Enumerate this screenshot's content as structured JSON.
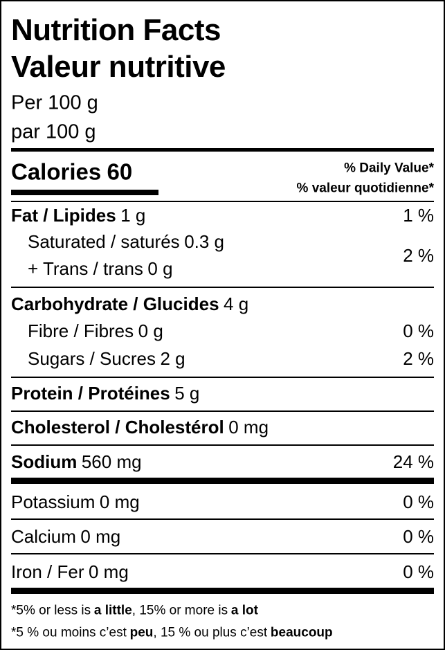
{
  "header": {
    "title_en": "Nutrition Facts",
    "title_fr": "Valeur nutritive",
    "serving_en": "Per 100 g",
    "serving_fr": "par 100 g"
  },
  "calories": {
    "label": "Calories",
    "amount": "60"
  },
  "daily_value_header": {
    "en": "% Daily Value*",
    "fr": "% valeur quotidienne*"
  },
  "fat": {
    "name": "Fat / Lipides",
    "amount": "1 g",
    "dv": "1 %"
  },
  "saturated_trans": {
    "saturated_name": "Saturated / saturés",
    "saturated_amount": "0.3 g",
    "trans_name": "+ Trans / trans",
    "trans_amount": "0 g",
    "dv": "2 %"
  },
  "carbohydrate": {
    "name": "Carbohydrate / Glucides",
    "amount": "4 g"
  },
  "fibre": {
    "name": "Fibre / Fibres",
    "amount": "0 g",
    "dv": "0 %"
  },
  "sugars": {
    "name": "Sugars / Sucres",
    "amount": "2 g",
    "dv": "2 %"
  },
  "protein": {
    "name": "Protein / Protéines",
    "amount": "5 g"
  },
  "cholesterol": {
    "name": "Cholesterol / Cholestérol",
    "amount": "0 mg"
  },
  "sodium": {
    "name": "Sodium",
    "amount": "560 mg",
    "dv": "24 %"
  },
  "potassium": {
    "name": "Potassium",
    "amount": "0 mg",
    "dv": "0 %"
  },
  "calcium": {
    "name": "Calcium",
    "amount": "0 mg",
    "dv": "0 %"
  },
  "iron": {
    "name": "Iron / Fer",
    "amount": "0 mg",
    "dv": "0 %"
  },
  "footnote": {
    "en": [
      "*5% or less is",
      "a little",
      ", 15% or more is",
      "a lot"
    ],
    "fr": [
      "*5 % ou moins c’est",
      "peu",
      ", 15 % ou plus c’est",
      "beaucoup"
    ]
  }
}
